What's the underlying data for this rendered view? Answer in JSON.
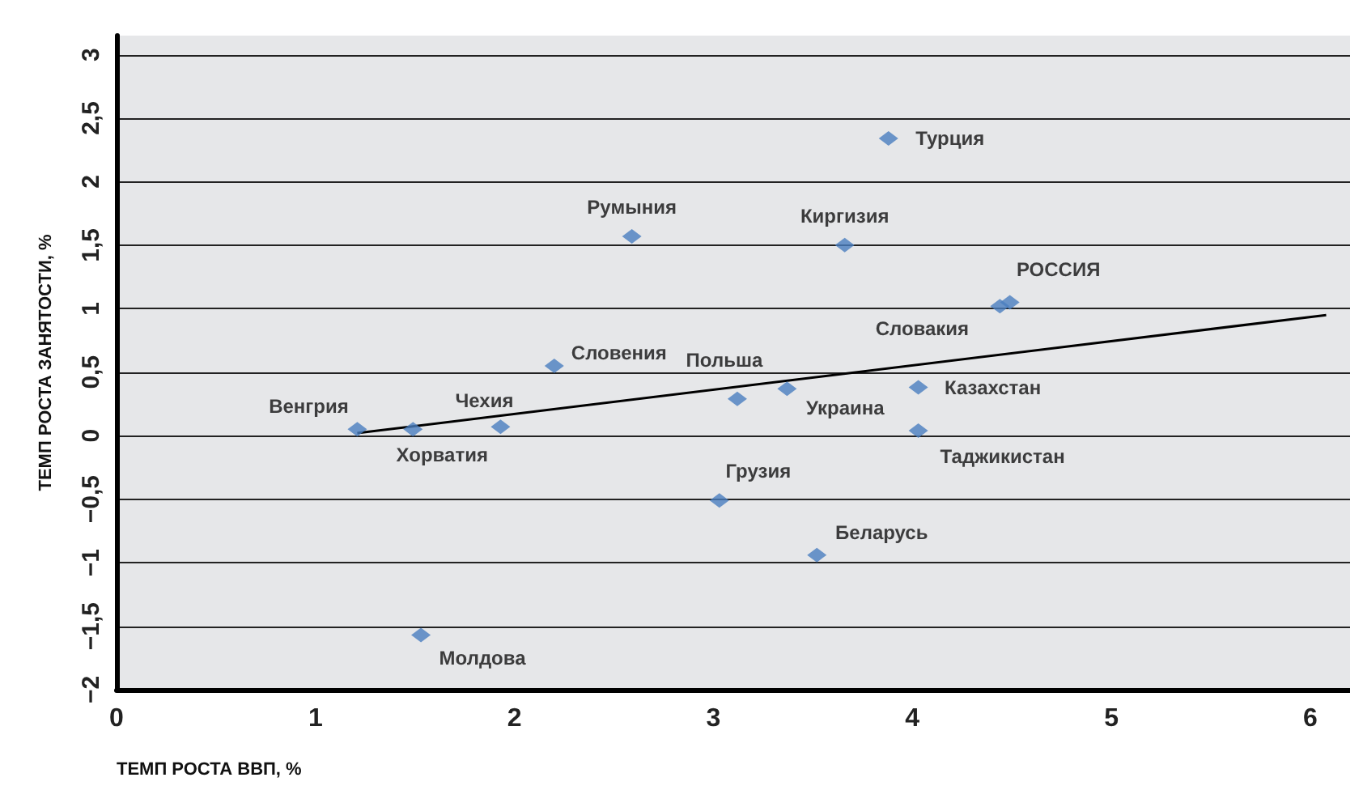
{
  "chart_data": {
    "type": "scatter",
    "xlabel": "ТЕМП РОСТА ВВП, %",
    "ylabel": "ТЕМП РОСТА ЗАНЯТОСТИ, %",
    "xlim": [
      0,
      6.2
    ],
    "ylim": [
      -2,
      3.15
    ],
    "xticks": [
      0,
      1,
      2,
      3,
      4,
      5,
      6
    ],
    "yticks": [
      {
        "value": -2,
        "label": "−2"
      },
      {
        "value": -1.5,
        "label": "−1,5"
      },
      {
        "value": -1,
        "label": "−1"
      },
      {
        "value": -0.5,
        "label": "−0,5"
      },
      0,
      {
        "value": 0.5,
        "label": "0,5"
      },
      1,
      {
        "value": 1.5,
        "label": "1,5"
      },
      2,
      {
        "value": 2.5,
        "label": "2,5"
      },
      3
    ],
    "grid": "y",
    "marker": "diamond",
    "series": [
      {
        "color": "#4a7ebf",
        "x": [
          1.21,
          1.49,
          1.93,
          2.2,
          2.59,
          1.53,
          3.03,
          3.12,
          3.37,
          3.52,
          3.66,
          3.88,
          4.03,
          4.03,
          4.44,
          4.49
        ],
        "values": [
          0.05,
          0.05,
          0.07,
          0.55,
          1.57,
          -1.57,
          -0.51,
          0.29,
          0.37,
          -0.94,
          1.5,
          2.34,
          0.38,
          0.04,
          1.02,
          1.05
        ]
      },
      {
        "type": "line",
        "color": "#000000",
        "marker": "none",
        "line_style": "solid",
        "x": [
          1.21,
          6.08
        ],
        "values": [
          0.02,
          0.95
        ]
      }
    ],
    "annotations": [
      {
        "text": "Венгрия",
        "x": 1.21,
        "y": 0.05
      },
      {
        "text": "Хорватия",
        "x": 1.49,
        "y": 0.05
      },
      {
        "text": "Чехия",
        "x": 1.93,
        "y": 0.07
      },
      {
        "text": "Словения",
        "x": 2.2,
        "y": 0.55
      },
      {
        "text": "Румыния",
        "x": 2.59,
        "y": 1.57
      },
      {
        "text": "Молдова",
        "x": 1.53,
        "y": -1.57
      },
      {
        "text": "Грузия",
        "x": 3.03,
        "y": -0.51
      },
      {
        "text": "Польша",
        "x": 3.12,
        "y": 0.29
      },
      {
        "text": "Украина",
        "x": 3.37,
        "y": 0.37
      },
      {
        "text": "Беларусь",
        "x": 3.52,
        "y": -0.94
      },
      {
        "text": "Киргизия",
        "x": 3.66,
        "y": 1.5
      },
      {
        "text": "Турция",
        "x": 3.88,
        "y": 2.34
      },
      {
        "text": "Казахстан",
        "x": 4.03,
        "y": 0.38
      },
      {
        "text": "Таджикистан",
        "x": 4.03,
        "y": 0.04
      },
      {
        "text": "Словакия",
        "x": 4.44,
        "y": 1.02
      },
      {
        "text": "РОССИЯ",
        "x": 4.49,
        "y": 1.05
      }
    ]
  }
}
